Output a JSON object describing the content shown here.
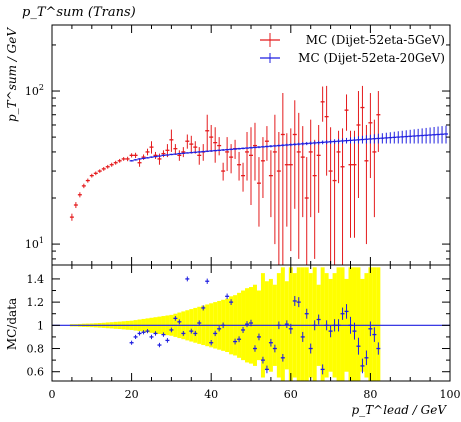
{
  "chart_data": [
    {
      "type": "scatter",
      "title": "p_T^sum (Trans)",
      "ylabel": "p_T^sum / GeV",
      "yscale": "log",
      "xlim": [
        0,
        100
      ],
      "ylim": [
        7.3,
        270
      ],
      "yticks": [
        10,
        100
      ],
      "ytick_labels": [
        "10^1",
        "10^2"
      ],
      "legend": "top-right",
      "series": [
        {
          "name": "MC (Dijet-52eta-5GeV)",
          "color": "#e41a1c",
          "x": [
            5,
            6,
            7,
            8,
            9,
            10,
            11,
            12,
            13,
            14,
            15,
            16,
            17,
            18,
            19,
            20,
            21,
            22,
            23,
            24,
            25,
            26,
            27,
            28,
            29,
            30,
            31,
            32,
            33,
            34,
            35,
            36,
            37,
            38,
            39,
            40,
            41,
            42,
            43,
            44,
            45,
            46,
            47,
            48,
            49,
            50,
            51,
            52,
            53,
            54,
            55,
            56,
            57,
            58,
            59,
            60,
            61,
            62,
            63,
            64,
            65,
            66,
            67,
            68,
            69,
            70,
            71,
            72,
            73,
            74,
            75,
            76,
            77,
            78,
            79,
            80,
            81,
            82
          ],
          "y": [
            15,
            18,
            21,
            24,
            26,
            28,
            29,
            30,
            31,
            32,
            33,
            34,
            35,
            36,
            36,
            38,
            38,
            34,
            37,
            40,
            43,
            38,
            36,
            39,
            41,
            48,
            42,
            38,
            40,
            47,
            45,
            43,
            38,
            40,
            55,
            50,
            46,
            44,
            30,
            40,
            37,
            42,
            33,
            28,
            40,
            38,
            44,
            25,
            35,
            47,
            28,
            40,
            30,
            52,
            33,
            33,
            52,
            40,
            37,
            20,
            40,
            28,
            38,
            85,
            68,
            30,
            26,
            40,
            32,
            75,
            33,
            33,
            60,
            78,
            35,
            62,
            40,
            70
          ],
          "err": [
            0.8,
            0.8,
            0.8,
            0.8,
            0.8,
            0.8,
            0.8,
            0.8,
            0.9,
            0.9,
            1,
            1,
            1,
            1,
            1.2,
            1.2,
            1.5,
            2,
            1.5,
            2,
            4,
            2,
            3,
            2,
            4,
            8,
            3,
            3,
            3,
            5,
            6,
            4,
            5,
            5,
            15,
            10,
            12,
            6,
            4,
            10,
            8,
            6,
            7,
            6,
            14,
            20,
            18,
            12,
            15,
            12,
            13,
            30,
            24,
            45,
            20,
            24,
            35,
            32,
            22,
            17,
            25,
            20,
            22,
            22,
            40,
            28,
            20,
            15,
            25,
            20,
            22,
            22,
            40,
            30,
            25,
            35,
            25,
            30
          ]
        },
        {
          "name": "MC (Dijet-52eta-20GeV)",
          "color": "#1f1fe0",
          "x": [
            20,
            21,
            22,
            23,
            24,
            25,
            26,
            27,
            28,
            29,
            30,
            31,
            32,
            33,
            34,
            35,
            36,
            37,
            38,
            39,
            40,
            41,
            42,
            43,
            44,
            45,
            46,
            47,
            48,
            49,
            50,
            51,
            52,
            53,
            54,
            55,
            56,
            57,
            58,
            59,
            60,
            61,
            62,
            63,
            64,
            65,
            66,
            67,
            68,
            69,
            70,
            71,
            72,
            73,
            74,
            75,
            76,
            77,
            78,
            79,
            80,
            81,
            82,
            83,
            84,
            85,
            86,
            87,
            88,
            89,
            90,
            91,
            92,
            93,
            94,
            95,
            96,
            97,
            98,
            99
          ],
          "y": [
            35,
            35.5,
            36,
            36.3,
            36.6,
            37,
            37.3,
            37.6,
            38,
            38.2,
            38.5,
            38.7,
            39,
            39.2,
            39.4,
            39.6,
            39.8,
            40,
            40.2,
            40.4,
            40.6,
            40.8,
            41,
            41.2,
            41.4,
            41.6,
            41.8,
            42,
            42.2,
            42.4,
            42.6,
            42.8,
            43,
            43.2,
            43.4,
            43.6,
            43.8,
            44,
            44.2,
            44.4,
            44.6,
            44.8,
            45,
            45.2,
            45.4,
            45.6,
            45.8,
            46,
            46.2,
            46.4,
            46.6,
            46.8,
            47,
            47.2,
            47.4,
            47.6,
            47.8,
            48,
            48.2,
            48.4,
            48.6,
            48.8,
            49,
            49.2,
            49.4,
            49.6,
            49.8,
            50,
            50.2,
            50.4,
            50.6,
            50.8,
            51,
            51.2,
            51.4,
            51.6,
            51.8,
            52,
            52.2,
            52.4
          ],
          "err": [
            0.4,
            0.4,
            0.4,
            0.4,
            0.4,
            0.4,
            0.4,
            0.4,
            0.4,
            0.4,
            0.4,
            0.4,
            0.4,
            0.4,
            0.4,
            0.5,
            0.5,
            0.5,
            0.5,
            0.5,
            0.5,
            0.5,
            0.5,
            0.6,
            0.6,
            0.6,
            0.6,
            0.6,
            0.6,
            0.6,
            0.7,
            0.7,
            0.7,
            0.7,
            0.8,
            0.8,
            0.8,
            0.8,
            0.9,
            0.9,
            1,
            1,
            1,
            1.1,
            1.1,
            1.2,
            1.2,
            1.3,
            1.3,
            1.4,
            1.5,
            1.6,
            1.7,
            1.8,
            2,
            2.2,
            2.4,
            2.6,
            2.8,
            3,
            3.2,
            3.4,
            3.6,
            3.8,
            4,
            4.2,
            4.4,
            4.6,
            4.8,
            5,
            5.2,
            5.4,
            5.6,
            5.8,
            6,
            6.2,
            6.4,
            6.6,
            6.8,
            7
          ]
        }
      ]
    },
    {
      "type": "scatter",
      "ylabel": "MC/data",
      "xlabel": "p_T^lead / GeV",
      "xlim": [
        0,
        100
      ],
      "ylim": [
        0.52,
        1.52
      ],
      "xticks": [
        0,
        20,
        40,
        60,
        80,
        100
      ],
      "yticks": [
        0.6,
        0.8,
        1,
        1.2,
        1.4
      ],
      "ytick_labels": [
        "0.6",
        "0.8",
        "1",
        "1.2",
        "1.4"
      ],
      "band_color": "#ffff00",
      "band_x": [
        5,
        6,
        7,
        8,
        9,
        10,
        11,
        12,
        13,
        14,
        15,
        16,
        17,
        18,
        19,
        20,
        21,
        22,
        23,
        24,
        25,
        26,
        27,
        28,
        29,
        30,
        31,
        32,
        33,
        34,
        35,
        36,
        37,
        38,
        39,
        40,
        41,
        42,
        43,
        44,
        45,
        46,
        47,
        48,
        49,
        50,
        51,
        52,
        53,
        54,
        55,
        56,
        57,
        58,
        59,
        60,
        61,
        62,
        63,
        64,
        65,
        66,
        67,
        68,
        69,
        70,
        71,
        72,
        73,
        74,
        75,
        76,
        77,
        78,
        79,
        80,
        81,
        82
      ],
      "band_err": [
        0.01,
        0.01,
        0.012,
        0.014,
        0.015,
        0.016,
        0.018,
        0.02,
        0.022,
        0.025,
        0.027,
        0.03,
        0.032,
        0.035,
        0.038,
        0.04,
        0.045,
        0.05,
        0.055,
        0.06,
        0.065,
        0.07,
        0.075,
        0.08,
        0.085,
        0.09,
        0.1,
        0.11,
        0.12,
        0.13,
        0.14,
        0.15,
        0.16,
        0.17,
        0.18,
        0.19,
        0.2,
        0.21,
        0.22,
        0.23,
        0.25,
        0.26,
        0.28,
        0.3,
        0.32,
        0.33,
        0.35,
        0.3,
        0.45,
        0.38,
        0.4,
        0.35,
        0.45,
        0.5,
        0.38,
        0.5,
        0.45,
        0.5,
        0.5,
        0.5,
        0.45,
        0.5,
        0.35,
        0.5,
        0.45,
        0.4,
        0.45,
        0.5,
        0.5,
        0.4,
        0.5,
        0.5,
        0.5,
        0.4,
        0.45,
        0.5,
        0.5,
        0.5
      ],
      "points_x": [
        20,
        21,
        22,
        23,
        24,
        25,
        26,
        27,
        28,
        29,
        30,
        31,
        32,
        33,
        34,
        35,
        36,
        37,
        38,
        39,
        40,
        41,
        42,
        43,
        44,
        45,
        46,
        47,
        48,
        49,
        50,
        51,
        52,
        53,
        54,
        55,
        56,
        57,
        58,
        59,
        60,
        61,
        62,
        63,
        64,
        65,
        66,
        67,
        68,
        69,
        70,
        71,
        72,
        73,
        74,
        75,
        76,
        77,
        78,
        79,
        80,
        81,
        82
      ],
      "points_y": [
        0.85,
        0.9,
        0.93,
        0.94,
        0.95,
        0.9,
        0.93,
        0.83,
        0.92,
        0.87,
        0.96,
        1.06,
        1.03,
        0.93,
        1.4,
        0.95,
        0.93,
        1.02,
        1.15,
        1.38,
        0.85,
        0.93,
        0.97,
        1.0,
        1.25,
        1.2,
        0.86,
        0.88,
        0.96,
        1.01,
        1.02,
        0.8,
        0.9,
        0.7,
        0.62,
        0.85,
        0.8,
        1.0,
        0.72,
        1.01,
        0.97,
        1.21,
        1.2,
        0.9,
        1.1,
        0.8,
        1.0,
        1.05,
        0.62,
        1.0,
        0.95,
        1.0,
        1.0,
        1.1,
        1.12,
        1.0,
        0.95,
        0.82,
        0.65,
        0.72,
        0.97,
        0.92,
        0.8
      ],
      "points_err": [
        0.005,
        0.005,
        0.005,
        0.005,
        0.005,
        0.006,
        0.006,
        0.006,
        0.006,
        0.007,
        0.007,
        0.007,
        0.008,
        0.008,
        0.008,
        0.008,
        0.009,
        0.009,
        0.009,
        0.01,
        0.01,
        0.01,
        0.01,
        0.011,
        0.011,
        0.012,
        0.012,
        0.012,
        0.013,
        0.013,
        0.015,
        0.015,
        0.016,
        0.016,
        0.02,
        0.02,
        0.02,
        0.02,
        0.02,
        0.02,
        0.03,
        0.03,
        0.03,
        0.03,
        0.03,
        0.03,
        0.03,
        0.03,
        0.03,
        0.03,
        0.04,
        0.04,
        0.04,
        0.04,
        0.05,
        0.06,
        0.06,
        0.06,
        0.05,
        0.05,
        0.05,
        0.05,
        0.04
      ],
      "points_color": "#1f1fe0",
      "ref_line_color": "#1f1fe0"
    }
  ]
}
